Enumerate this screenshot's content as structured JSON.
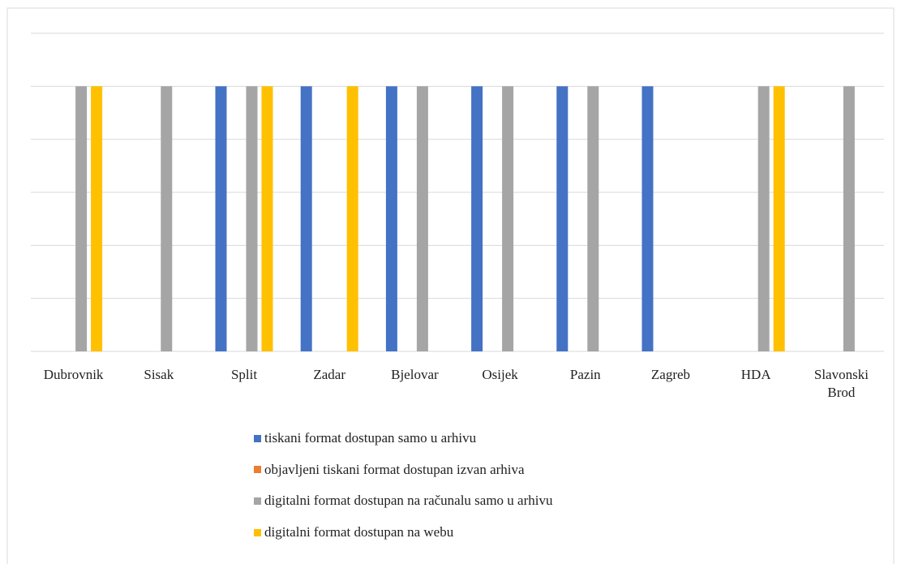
{
  "chart_data": {
    "type": "bar",
    "categories": [
      "Dubrovnik",
      "Sisak",
      "Split",
      "Zadar",
      "Bjelovar",
      "Osijek",
      "Pazin",
      "Zagreb",
      "HDA",
      "Slavonski Brod"
    ],
    "series": [
      {
        "name": "tiskani format dostupan samo u arhivu",
        "color": "#4472c4",
        "values": [
          0,
          0,
          1,
          1,
          1,
          1,
          1,
          1,
          0,
          0
        ]
      },
      {
        "name": "objavljeni tiskani format dostupan izvan arhiva",
        "color": "#ed7d31",
        "values": [
          0,
          0,
          0,
          0,
          0,
          0,
          0,
          0,
          0,
          0
        ]
      },
      {
        "name": "digitalni format dostupan na računalu samo u arhivu",
        "color": "#a5a5a5",
        "values": [
          1,
          1,
          1,
          0,
          1,
          1,
          1,
          0,
          1,
          1
        ]
      },
      {
        "name": "digitalni format dostupan na webu",
        "color": "#ffc000",
        "values": [
          1,
          0,
          1,
          1,
          0,
          0,
          0,
          0,
          1,
          0
        ]
      }
    ],
    "ylim": [
      0,
      1.2
    ],
    "yticks": [
      0,
      0.2,
      0.4,
      0.6,
      0.8,
      1,
      1.2
    ],
    "grid": true,
    "legend": "bottom"
  }
}
